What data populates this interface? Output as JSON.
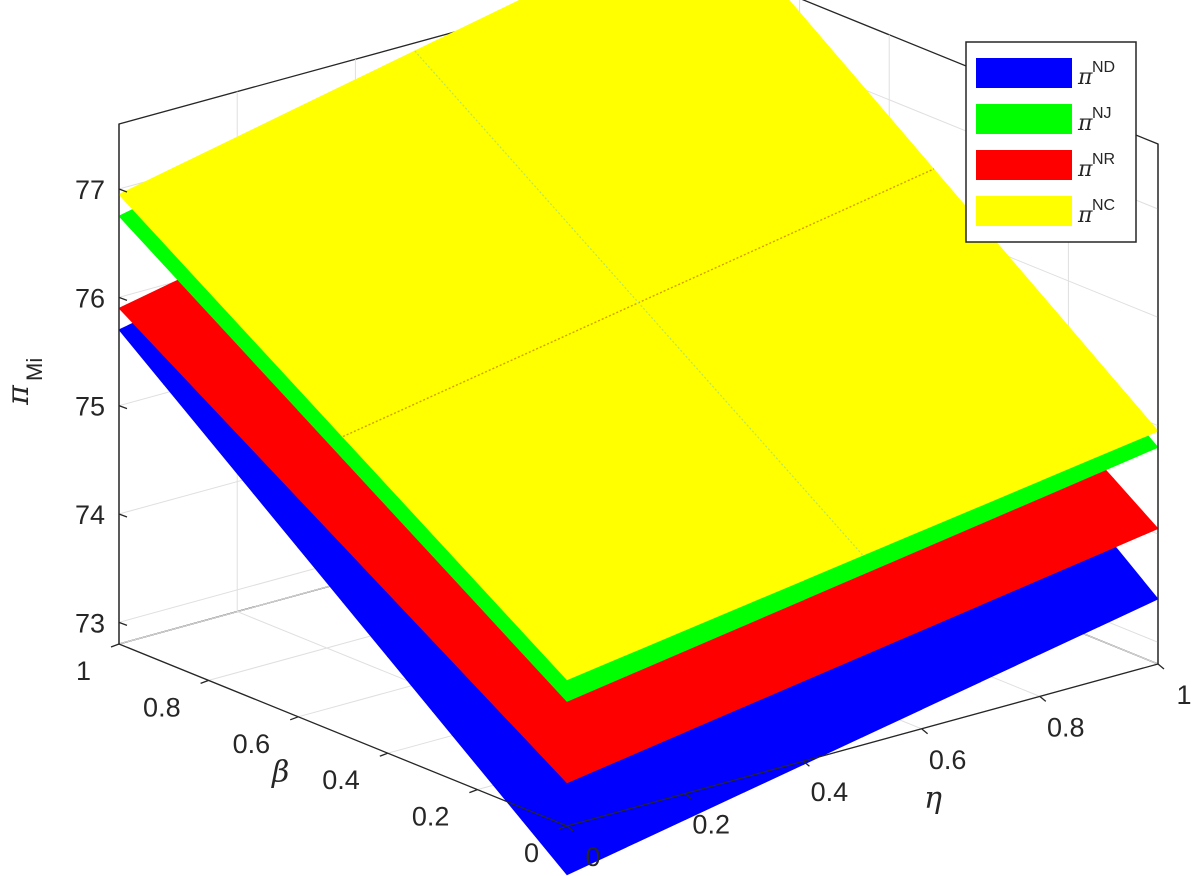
{
  "chart_data": {
    "type": "surface",
    "title": "",
    "xlabel": "η",
    "ylabel": "β",
    "zlabel_symbol": "π",
    "zlabel_sub": "Mi",
    "xlim": [
      0,
      1
    ],
    "ylim": [
      0,
      1
    ],
    "zlim": [
      72.8,
      77.6
    ],
    "x_ticks": [
      "0",
      "0.2",
      "0.4",
      "0.6",
      "0.8",
      "1"
    ],
    "y_ticks": [
      "0",
      "0.2",
      "0.4",
      "0.6",
      "0.8",
      "1"
    ],
    "z_ticks": [
      "73",
      "74",
      "75",
      "76",
      "77"
    ],
    "grid": true,
    "legend_position": "top-right",
    "series": [
      {
        "symbol": "π",
        "sup": "ND",
        "color": "#0000ff",
        "corners": {
          "eta0_beta0": 72.35,
          "eta1_beta0": 73.4,
          "eta0_beta1": 75.7,
          "eta1_beta1": 76.8
        }
      },
      {
        "symbol": "π",
        "sup": "NJ",
        "color": "#00ff00",
        "corners": {
          "eta0_beta0": 73.95,
          "eta1_beta0": 74.8,
          "eta0_beta1": 76.75,
          "eta1_beta1": 77.9
        }
      },
      {
        "symbol": "π",
        "sup": "NR",
        "color": "#ff0000",
        "corners": {
          "eta0_beta0": 73.2,
          "eta1_beta0": 74.05,
          "eta0_beta1": 75.9,
          "eta1_beta1": 77.0
        }
      },
      {
        "symbol": "π",
        "sup": "NC",
        "color": "#ffff00",
        "corners": {
          "eta0_beta0": 74.15,
          "eta1_beta0": 74.95,
          "eta0_beta1": 76.95,
          "eta1_beta1": 78.1
        }
      }
    ]
  }
}
